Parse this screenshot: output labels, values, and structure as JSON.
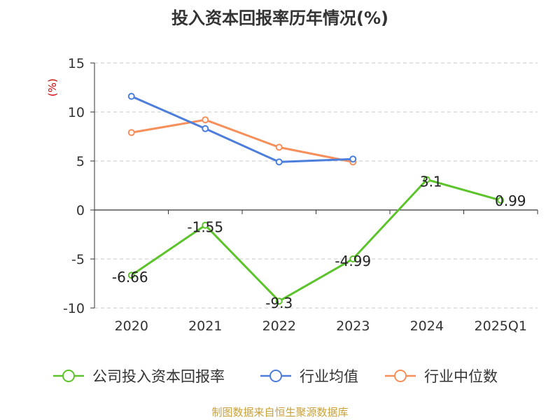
{
  "chart_data": {
    "type": "line",
    "title": "投入资本回报率历年情况(%)",
    "ylabel": "(%)",
    "ylim": [
      -10,
      15
    ],
    "yticks": [
      15,
      10,
      5,
      0,
      -5,
      -10
    ],
    "categories": [
      "2020",
      "2021",
      "2022",
      "2023",
      "2024",
      "2025Q1"
    ],
    "grid": true,
    "legend_position": "bottom",
    "series": [
      {
        "name": "公司投入资本回报率",
        "color": "#5cc42b",
        "values": [
          -6.66,
          -1.55,
          -9.3,
          -4.99,
          3.1,
          0.99
        ],
        "labels": [
          "-6.66",
          "-1.55",
          "-9.3",
          "-4.99",
          "3.1",
          "0.99"
        ]
      },
      {
        "name": "行业均值",
        "color": "#4d7edc",
        "values": [
          11.6,
          8.3,
          4.9,
          5.2,
          null,
          null
        ]
      },
      {
        "name": "行业中位数",
        "color": "#f78f5b",
        "values": [
          7.9,
          9.2,
          6.4,
          4.9,
          null,
          null
        ]
      }
    ],
    "source": "制图数据来自恒生聚源数据库"
  }
}
